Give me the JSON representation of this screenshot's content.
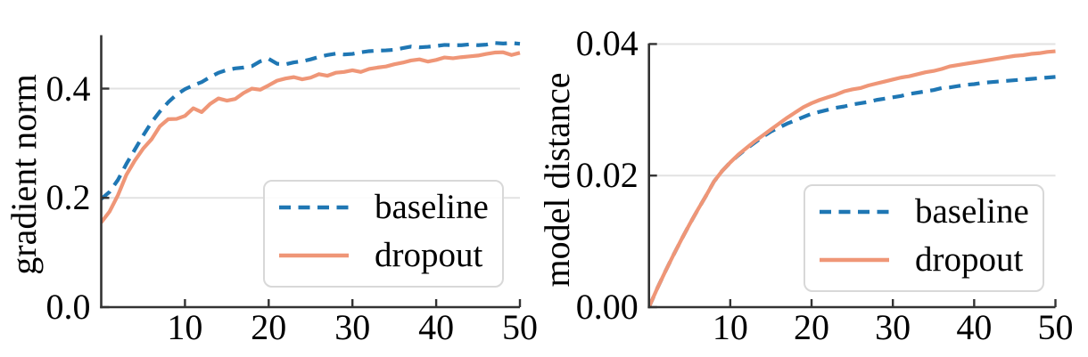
{
  "colors": {
    "baseline": "#1f77b4",
    "dropout": "#ef9677",
    "grid": "#e2e2e2",
    "spine": "#333333",
    "text": "#000000",
    "legend_border": "#d8d8d8"
  },
  "chart_data": [
    {
      "type": "line",
      "title": "",
      "xlabel": "",
      "ylabel": "gradient norm",
      "xlim": [
        0,
        50
      ],
      "ylim": [
        0,
        0.4978
      ],
      "xticks": [
        10,
        20,
        30,
        40,
        50
      ],
      "xtick_labels": [
        "10",
        "20",
        "30",
        "40",
        "50"
      ],
      "yticks": [
        0.0,
        0.2,
        0.4
      ],
      "ytick_labels": [
        "0.0",
        "0.2",
        "0.4"
      ],
      "grid": "horizontal",
      "legend_position": "lower right",
      "x": [
        0,
        1,
        2,
        3,
        4,
        5,
        6,
        7,
        8,
        9,
        10,
        11,
        12,
        13,
        14,
        15,
        16,
        17,
        18,
        19,
        20,
        21,
        22,
        23,
        24,
        25,
        26,
        27,
        28,
        29,
        30,
        31,
        32,
        33,
        34,
        35,
        36,
        37,
        38,
        39,
        40,
        41,
        42,
        43,
        44,
        45,
        46,
        47,
        48,
        49,
        50
      ],
      "series": [
        {
          "name": "baseline",
          "style": "dashed",
          "color": "#1f77b4",
          "values": [
            0.198,
            0.211,
            0.233,
            0.262,
            0.288,
            0.314,
            0.338,
            0.358,
            0.375,
            0.389,
            0.399,
            0.406,
            0.412,
            0.421,
            0.429,
            0.434,
            0.437,
            0.4385,
            0.441,
            0.45,
            0.4545,
            0.4455,
            0.4445,
            0.448,
            0.45,
            0.4535,
            0.458,
            0.4615,
            0.464,
            0.4625,
            0.4635,
            0.4665,
            0.4685,
            0.4695,
            0.47,
            0.471,
            0.474,
            0.477,
            0.4755,
            0.4765,
            0.478,
            0.48,
            0.4795,
            0.4795,
            0.481,
            0.4795,
            0.4805,
            0.4835,
            0.4825,
            0.4835,
            0.482
          ]
        },
        {
          "name": "dropout",
          "style": "solid",
          "color": "#ef9677",
          "values": [
            0.155,
            0.175,
            0.205,
            0.242,
            0.268,
            0.29,
            0.307,
            0.331,
            0.344,
            0.3445,
            0.35,
            0.364,
            0.357,
            0.372,
            0.382,
            0.378,
            0.381,
            0.392,
            0.4,
            0.398,
            0.406,
            0.4145,
            0.4185,
            0.421,
            0.417,
            0.42,
            0.4265,
            0.4235,
            0.429,
            0.4305,
            0.4335,
            0.4305,
            0.436,
            0.4385,
            0.4405,
            0.4445,
            0.4475,
            0.4515,
            0.4535,
            0.4495,
            0.4525,
            0.457,
            0.4555,
            0.4575,
            0.459,
            0.4605,
            0.4635,
            0.466,
            0.4665,
            0.4615,
            0.4655
          ]
        }
      ]
    },
    {
      "type": "line",
      "title": "",
      "xlabel": "",
      "ylabel": "model distance",
      "xlim": [
        0,
        50
      ],
      "ylim": [
        0,
        0.0401
      ],
      "xticks": [
        10,
        20,
        30,
        40,
        50
      ],
      "xtick_labels": [
        "10",
        "20",
        "30",
        "40",
        "50"
      ],
      "yticks": [
        0.0,
        0.02,
        0.04
      ],
      "ytick_labels": [
        "0.00",
        "0.02",
        "0.04"
      ],
      "grid": "horizontal",
      "legend_position": "lower right",
      "x": [
        0,
        1,
        2,
        3,
        4,
        5,
        6,
        7,
        8,
        9,
        10,
        11,
        12,
        13,
        14,
        15,
        16,
        17,
        18,
        19,
        20,
        21,
        22,
        23,
        24,
        25,
        26,
        27,
        28,
        29,
        30,
        31,
        32,
        33,
        34,
        35,
        36,
        37,
        38,
        39,
        40,
        41,
        42,
        43,
        44,
        45,
        46,
        47,
        48,
        49,
        50
      ],
      "series": [
        {
          "name": "baseline",
          "style": "dashed",
          "color": "#1f77b4",
          "values": [
            0,
            0.0028,
            0.0054,
            0.0079,
            0.0103,
            0.0126,
            0.0148,
            0.0169,
            0.0191,
            0.0207,
            0.022,
            0.0231,
            0.0241,
            0.025,
            0.0259,
            0.0267,
            0.0273,
            0.0279,
            0.0284,
            0.0289,
            0.0294,
            0.0297,
            0.03,
            0.0303,
            0.0305,
            0.0308,
            0.031,
            0.0312,
            0.0315,
            0.0317,
            0.0319,
            0.0321,
            0.0324,
            0.0326,
            0.0328,
            0.033,
            0.0333,
            0.0334,
            0.0336,
            0.0338,
            0.0339,
            0.0341,
            0.0342,
            0.0343,
            0.0344,
            0.0345,
            0.0346,
            0.0347,
            0.0348,
            0.0349,
            0.035
          ]
        },
        {
          "name": "dropout",
          "style": "solid",
          "color": "#ef9677",
          "values": [
            0,
            0.0028,
            0.0054,
            0.0079,
            0.0103,
            0.0126,
            0.0148,
            0.0169,
            0.0191,
            0.0207,
            0.022,
            0.0232,
            0.0242,
            0.0252,
            0.0261,
            0.027,
            0.0279,
            0.0288,
            0.0296,
            0.0304,
            0.031,
            0.0315,
            0.0319,
            0.0323,
            0.0328,
            0.0331,
            0.0333,
            0.0337,
            0.034,
            0.0343,
            0.0346,
            0.0349,
            0.0351,
            0.0354,
            0.0357,
            0.0359,
            0.0362,
            0.0366,
            0.0368,
            0.037,
            0.0372,
            0.0374,
            0.0376,
            0.0378,
            0.038,
            0.0382,
            0.0383,
            0.0385,
            0.0386,
            0.0388,
            0.0389
          ]
        }
      ]
    }
  ]
}
